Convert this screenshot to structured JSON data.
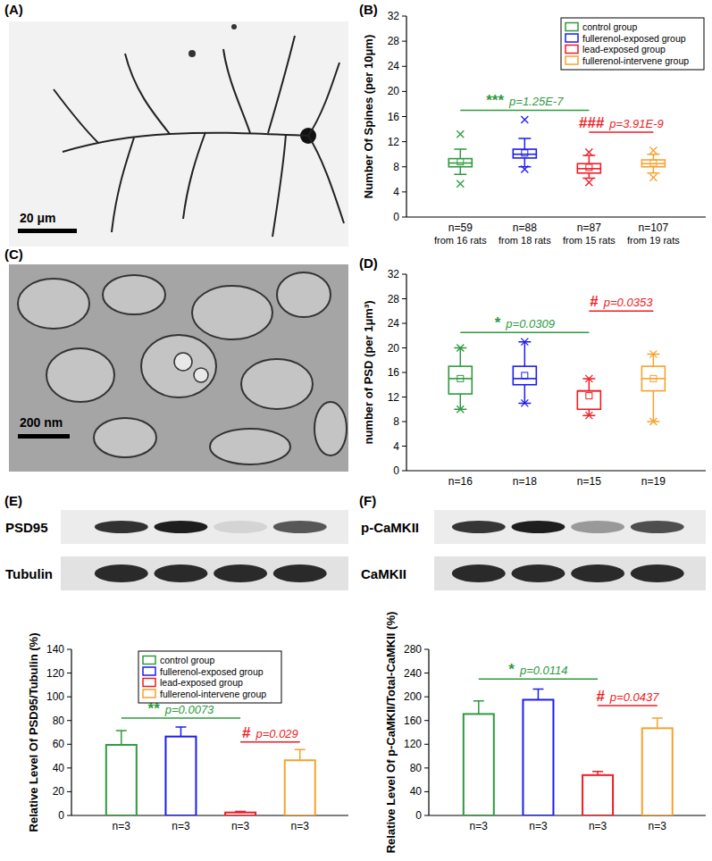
{
  "images": [
    {
      "label": "(A)",
      "scale_bar": "20 μm"
    },
    {
      "label": "(C)",
      "scale_bar": "200 nm"
    }
  ],
  "blots": [
    {
      "rows": [
        "PSD95",
        "Tubulin"
      ]
    },
    {
      "rows": [
        "p-CaMKII",
        "CaMKII"
      ]
    }
  ],
  "chart_data": [
    {
      "type": "box",
      "title": "(B)",
      "y_label": "Number Of Spines (per 10μm)",
      "categories": [
        "n=59",
        "n=88",
        "n=87",
        "n=107"
      ],
      "category_notes": [
        "from 16 rats",
        "from 18 rats",
        "from 15 rats",
        "from 19 rats"
      ],
      "ylim": [
        0,
        32
      ],
      "yticks": [
        0,
        4,
        8,
        12,
        16,
        20,
        24,
        28,
        32
      ],
      "legend": "top right",
      "series": [
        {
          "name": "control group",
          "color": "#2e9a3e",
          "whisker_low": 6.8,
          "q1": 8.0,
          "median": 8.6,
          "q3": 9.3,
          "whisker_high": 10.8,
          "mean": 8.8,
          "extremes": [
            5.3,
            13.2
          ]
        },
        {
          "name": "fullerenol-exposed group",
          "color": "#1c1cf0",
          "whisker_low": 8.0,
          "q1": 9.4,
          "median": 10.0,
          "q3": 10.8,
          "whisker_high": 12.5,
          "mean": 10.2,
          "extremes": [
            7.6,
            15.5
          ]
        },
        {
          "name": "lead-exposed group",
          "color": "#ee1c24",
          "whisker_low": 6.2,
          "q1": 7.0,
          "median": 7.7,
          "q3": 8.5,
          "whisker_high": 9.8,
          "mean": 7.9,
          "extremes": [
            5.5,
            10.3
          ]
        },
        {
          "name": "fullerenol-intervene group",
          "color": "#f7a12d",
          "whisker_low": 7.0,
          "q1": 8.0,
          "median": 8.5,
          "q3": 9.1,
          "whisker_high": 10.0,
          "mean": 8.6,
          "extremes": [
            6.3,
            10.6
          ]
        }
      ],
      "annotations": [
        {
          "text": "***",
          "p_text": "p=1.25E-7",
          "from": 0,
          "to": 2,
          "y": 17,
          "color": "#2e9a3e"
        },
        {
          "text": "###",
          "p_text": "p=3.91E-9",
          "from": 2,
          "to": 3,
          "y": 13.5,
          "color": "#ee1c24"
        }
      ]
    },
    {
      "type": "box",
      "title": "(D)",
      "y_label": "number of PSD (per 1μm³)",
      "categories": [
        "n=16",
        "n=18",
        "n=15",
        "n=19"
      ],
      "ylim": [
        0,
        32
      ],
      "yticks": [
        0,
        4,
        8,
        12,
        16,
        20,
        24,
        28,
        32
      ],
      "series": [
        {
          "color": "#2e9a3e",
          "whisker_low": 10,
          "q1": 12.5,
          "median": 15,
          "q3": 17,
          "whisker_high": 20,
          "mean": 15,
          "extremes": [
            10,
            20
          ]
        },
        {
          "color": "#1c1cf0",
          "whisker_low": 11,
          "q1": 14,
          "median": 15,
          "q3": 17,
          "whisker_high": 21,
          "mean": 15.5,
          "extremes": [
            11,
            21
          ]
        },
        {
          "color": "#ee1c24",
          "whisker_low": 9,
          "q1": 10,
          "median": 13,
          "q3": 13,
          "whisker_high": 15,
          "mean": 12.2,
          "extremes": [
            9,
            15
          ]
        },
        {
          "color": "#f7a12d",
          "whisker_low": 8,
          "q1": 13,
          "median": 15,
          "q3": 17,
          "whisker_high": 19,
          "mean": 15,
          "extremes": [
            8,
            19
          ]
        }
      ],
      "annotations": [
        {
          "text": "*",
          "p_text": "p=0.0309",
          "from": 0,
          "to": 2,
          "y": 22.5,
          "color": "#2e9a3e"
        },
        {
          "text": "#",
          "p_text": "p=0.0353",
          "from": 2,
          "to": 3,
          "y": 26,
          "color": "#ee1c24"
        }
      ]
    },
    {
      "type": "bar",
      "title": "(E)",
      "y_label": "Relative Level Of PSD95/Tubulin (%)",
      "categories": [
        "n=3",
        "n=3",
        "n=3",
        "n=3"
      ],
      "ylim": [
        0,
        140
      ],
      "yticks": [
        0,
        20,
        40,
        60,
        80,
        100,
        120,
        140
      ],
      "legend": "top",
      "series": [
        {
          "name": "control group",
          "color": "#2e9a3e",
          "values": [
            59.5,
            null,
            null,
            null
          ],
          "errors": [
            12,
            null,
            null,
            null
          ]
        },
        {
          "name": "fullerenol-exposed group",
          "color": "#1c1cf0",
          "values": [
            null,
            66.5,
            null,
            null
          ],
          "errors": [
            null,
            8,
            null,
            null
          ]
        },
        {
          "name": "lead-exposed group",
          "color": "#ee1c24",
          "values": [
            null,
            null,
            2.5,
            null
          ],
          "errors": [
            null,
            null,
            0.8,
            null
          ]
        },
        {
          "name": "fullerenol-intervene group",
          "color": "#f7a12d",
          "values": [
            null,
            null,
            null,
            46.5
          ],
          "errors": [
            null,
            null,
            null,
            9
          ]
        }
      ],
      "annotations": [
        {
          "text": "**",
          "p_text": "p=0.0073",
          "from": 0,
          "to": 2,
          "y": 82,
          "color": "#2e9a3e"
        },
        {
          "text": "#",
          "p_text": "p=0.029",
          "from": 2,
          "to": 3,
          "y": 62,
          "color": "#ee1c24"
        }
      ]
    },
    {
      "type": "bar",
      "title": "(F)",
      "y_label": "Relative Level Of p-CaMKII/Total-CaMKII (%)",
      "categories": [
        "n=3",
        "n=3",
        "n=3",
        "n=3"
      ],
      "ylim": [
        0,
        280
      ],
      "yticks": [
        0,
        40,
        80,
        120,
        160,
        200,
        240,
        280
      ],
      "series": [
        {
          "color": "#2e9a3e",
          "values": [
            171,
            null,
            null,
            null
          ],
          "errors": [
            22,
            null,
            null,
            null
          ]
        },
        {
          "color": "#1c1cf0",
          "values": [
            null,
            195,
            null,
            null
          ],
          "errors": [
            null,
            18,
            null,
            null
          ]
        },
        {
          "color": "#ee1c24",
          "values": [
            null,
            null,
            68,
            null
          ],
          "errors": [
            null,
            null,
            6,
            null
          ]
        },
        {
          "color": "#f7a12d",
          "values": [
            null,
            null,
            null,
            147
          ],
          "errors": [
            null,
            null,
            null,
            17
          ]
        }
      ],
      "annotations": [
        {
          "text": "*",
          "p_text": "p=0.0114",
          "from": 0,
          "to": 2,
          "y": 230,
          "color": "#2e9a3e"
        },
        {
          "text": "#",
          "p_text": "p=0.0437",
          "from": 2,
          "to": 3,
          "y": 185,
          "color": "#ee1c24"
        }
      ]
    }
  ]
}
